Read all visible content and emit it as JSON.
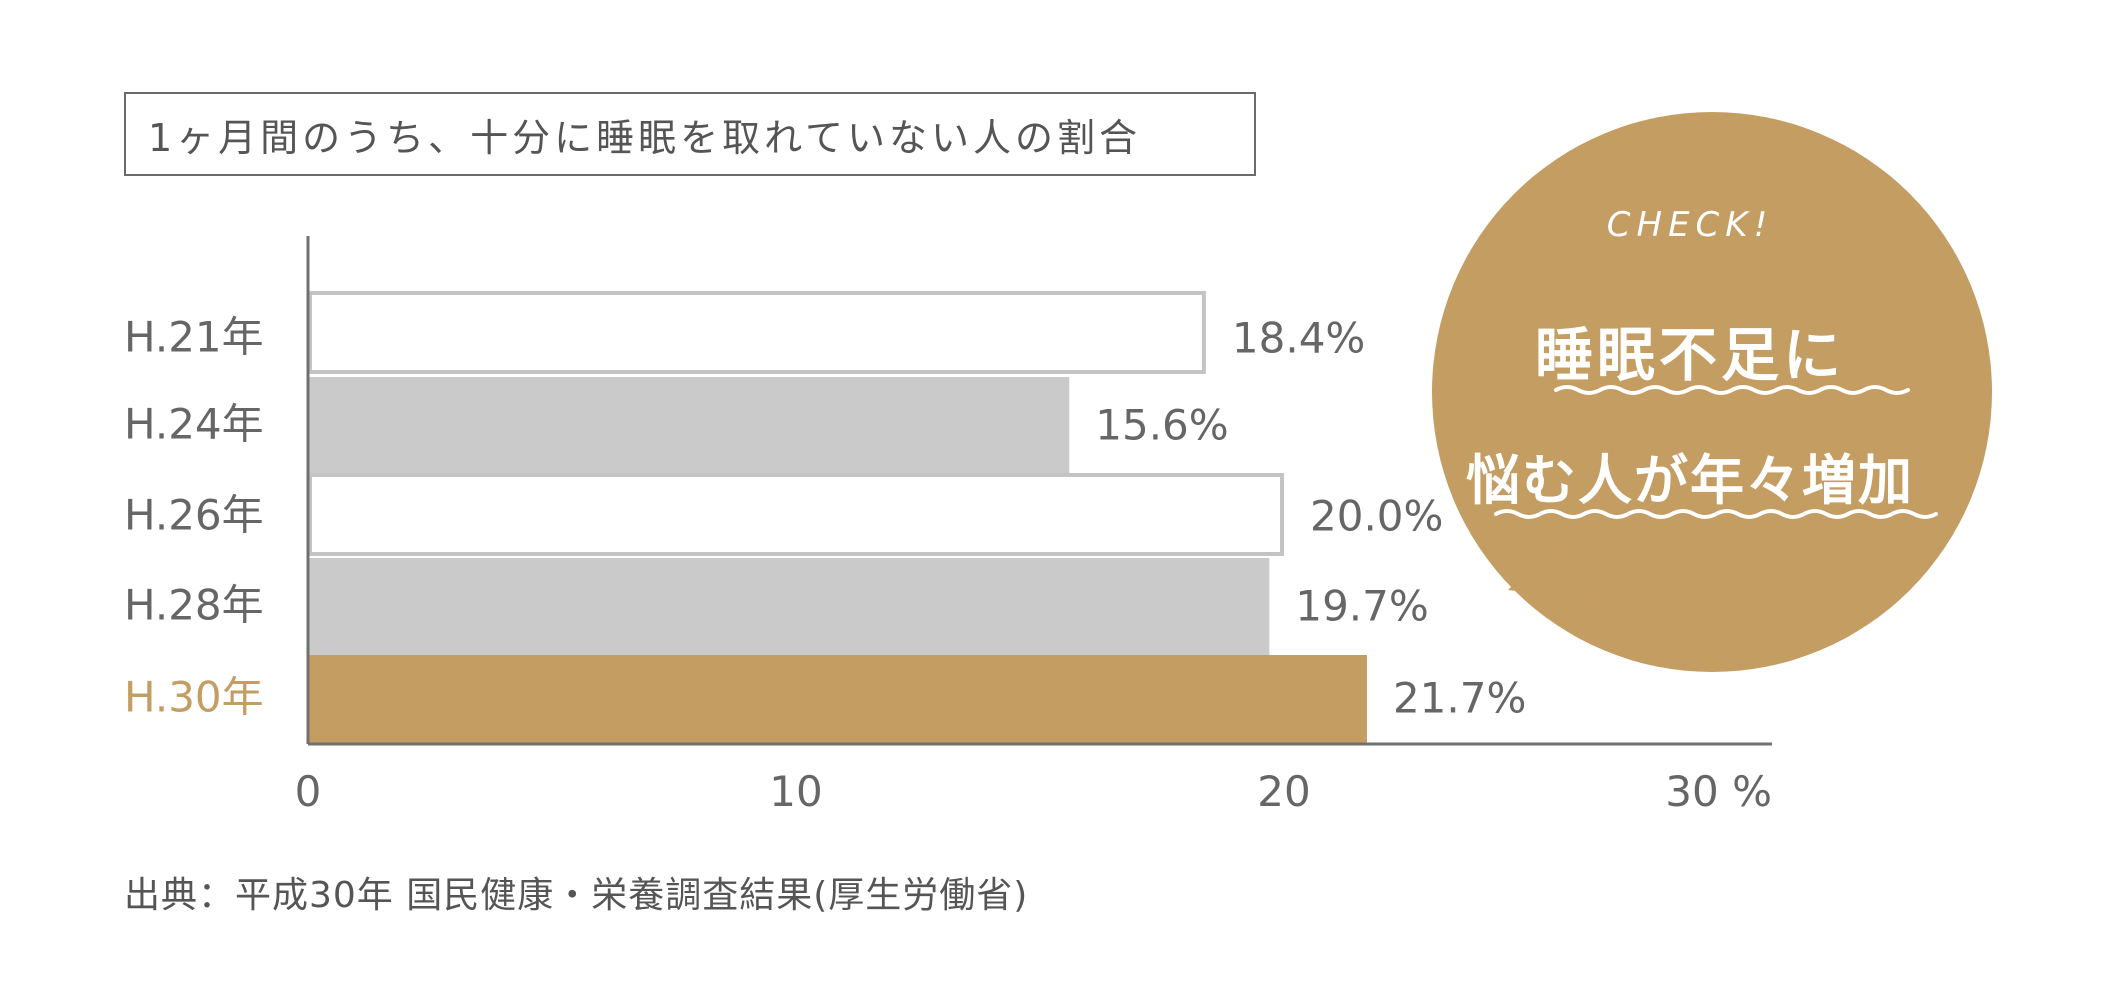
{
  "title": "1ヶ月間のうち、十分に睡眠を取れていない人の割合",
  "chart_data": {
    "type": "bar",
    "orientation": "horizontal",
    "categories": [
      "H.21年",
      "H.24年",
      "H.26年",
      "H.28年",
      "H.30年"
    ],
    "values": [
      18.4,
      15.6,
      20.0,
      19.7,
      21.7
    ],
    "value_labels": [
      "18.4%",
      "15.6%",
      "20.0%",
      "19.7%",
      "21.7%"
    ],
    "xlim": [
      0,
      30
    ],
    "xticks": [
      0,
      10,
      20,
      30
    ],
    "xtick_labels": [
      "0",
      "10",
      "20",
      "30 %"
    ],
    "grid": false
  },
  "bubble": {
    "check": "CHECK!",
    "line1": "睡眠不足に",
    "line2": "悩む人が年々増加"
  },
  "source": "出典：平成30年 国民健康・栄養調査結果(厚生労働省)",
  "colors": {
    "accent": "#c49d62",
    "bar_gray": "#cacaca",
    "bar_white": "#ffffff",
    "bar_border": "#c4c4c4",
    "axis": "#707070",
    "text": "#666666",
    "highlight_text": "#c49d62"
  },
  "bar_styles": [
    "outline",
    "gray",
    "outline",
    "gray",
    "accent"
  ]
}
